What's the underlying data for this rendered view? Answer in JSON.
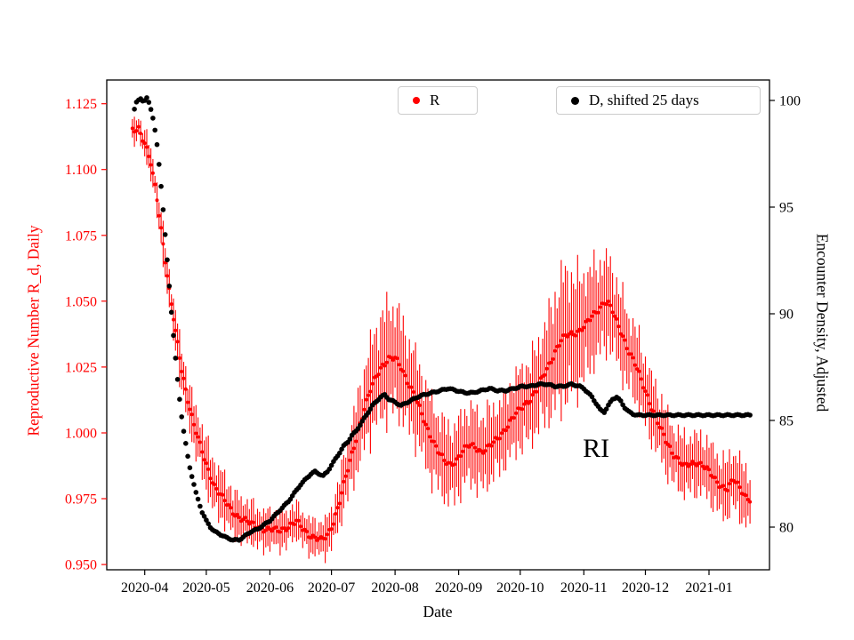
{
  "chart_data": {
    "type": "scatter",
    "title": "",
    "xlabel": "Date",
    "ylabel_left": "Reproductive Number R_d, Daily",
    "ylabel_right": "Encounter Density, Adjusted",
    "x_unit": "days since 2020-04-01",
    "xlim": [
      -18.5,
      304.5
    ],
    "ylim_left": [
      0.948,
      1.134
    ],
    "ylim_right": [
      78.0,
      100.96
    ],
    "grid": false,
    "x_ticks": [
      {
        "day": 0,
        "label": "2020-04"
      },
      {
        "day": 30,
        "label": "2020-05"
      },
      {
        "day": 61,
        "label": "2020-06"
      },
      {
        "day": 91,
        "label": "2020-07"
      },
      {
        "day": 122,
        "label": "2020-08"
      },
      {
        "day": 153,
        "label": "2020-09"
      },
      {
        "day": 183,
        "label": "2020-10"
      },
      {
        "day": 214,
        "label": "2020-11"
      },
      {
        "day": 244,
        "label": "2020-12"
      },
      {
        "day": 275,
        "label": "2021-01"
      }
    ],
    "y_ticks_left": [
      "0.950",
      "0.975",
      "1.000",
      "1.025",
      "1.050",
      "1.075",
      "1.100",
      "1.125"
    ],
    "y_ticks_right": [
      "80",
      "85",
      "90",
      "95",
      "100"
    ],
    "legend": [
      {
        "label": "R",
        "color": "#ff0000"
      },
      {
        "label": "D, shifted 25 days",
        "color": "#000000"
      }
    ],
    "annotation": {
      "text": "RI",
      "day": 220,
      "value_left": 0.994
    },
    "colors": {
      "r_series": "#ff0000",
      "d_series": "#000000",
      "axis": "#000000",
      "legend_edge": "#cccccc"
    },
    "series": [
      {
        "name": "R",
        "axis": "left",
        "color": "#ff0000",
        "marker": "dot",
        "has_error_bars": true,
        "keypoints_format": [
          "day",
          "value",
          "error"
        ],
        "keypoints": [
          [
            -6,
            1.115,
            0.004
          ],
          [
            -3,
            1.116,
            0.004
          ],
          [
            0,
            1.11,
            0.005
          ],
          [
            3,
            1.102,
            0.005
          ],
          [
            6,
            1.089,
            0.006
          ],
          [
            9,
            1.072,
            0.006
          ],
          [
            12,
            1.054,
            0.007
          ],
          [
            15,
            1.038,
            0.007
          ],
          [
            18,
            1.024,
            0.008
          ],
          [
            21,
            1.013,
            0.008
          ],
          [
            24,
            1.003,
            0.008
          ],
          [
            27,
            0.995,
            0.009
          ],
          [
            30,
            0.988,
            0.009
          ],
          [
            34,
            0.98,
            0.009
          ],
          [
            38,
            0.975,
            0.0085
          ],
          [
            42,
            0.971,
            0.008
          ],
          [
            46,
            0.968,
            0.0075
          ],
          [
            50,
            0.966,
            0.007
          ],
          [
            55,
            0.9645,
            0.007
          ],
          [
            60,
            0.963,
            0.0065
          ],
          [
            65,
            0.963,
            0.0065
          ],
          [
            70,
            0.9645,
            0.006
          ],
          [
            74,
            0.966,
            0.006
          ],
          [
            78,
            0.963,
            0.006
          ],
          [
            82,
            0.9605,
            0.006
          ],
          [
            86,
            0.959,
            0.006
          ],
          [
            89,
            0.961,
            0.0065
          ],
          [
            92,
            0.9665,
            0.0075
          ],
          [
            95,
            0.974,
            0.0085
          ],
          [
            98,
            0.983,
            0.01
          ],
          [
            101,
            0.992,
            0.011
          ],
          [
            104,
            1.001,
            0.013
          ],
          [
            107,
            1.009,
            0.014
          ],
          [
            110,
            1.016,
            0.016
          ],
          [
            113,
            1.022,
            0.017
          ],
          [
            116,
            1.026,
            0.018
          ],
          [
            119,
            1.028,
            0.019
          ],
          [
            122,
            1.028,
            0.018
          ],
          [
            125,
            1.025,
            0.017
          ],
          [
            128,
            1.02,
            0.016
          ],
          [
            131,
            1.015,
            0.015
          ],
          [
            134,
            1.009,
            0.015
          ],
          [
            137,
            1.003,
            0.014
          ],
          [
            140,
            0.998,
            0.014
          ],
          [
            143,
            0.993,
            0.013
          ],
          [
            146,
            0.989,
            0.013
          ],
          [
            149,
            0.988,
            0.013
          ],
          [
            152,
            0.99,
            0.013
          ],
          [
            155,
            0.993,
            0.013
          ],
          [
            158,
            0.995,
            0.013
          ],
          [
            161,
            0.995,
            0.013
          ],
          [
            164,
            0.993,
            0.013
          ],
          [
            167,
            0.994,
            0.013
          ],
          [
            170,
            0.996,
            0.012
          ],
          [
            173,
            0.999,
            0.012
          ],
          [
            176,
            1.002,
            0.012
          ],
          [
            179,
            1.005,
            0.013
          ],
          [
            182,
            1.008,
            0.013
          ],
          [
            185,
            1.011,
            0.014
          ],
          [
            188,
            1.013,
            0.014
          ],
          [
            191,
            1.016,
            0.015
          ],
          [
            194,
            1.021,
            0.016
          ],
          [
            197,
            1.026,
            0.018
          ],
          [
            200,
            1.031,
            0.02
          ],
          [
            203,
            1.035,
            0.022
          ],
          [
            206,
            1.037,
            0.022
          ],
          [
            209,
            1.038,
            0.021
          ],
          [
            212,
            1.039,
            0.019
          ],
          [
            215,
            1.041,
            0.018
          ],
          [
            218,
            1.044,
            0.017
          ],
          [
            221,
            1.047,
            0.016
          ],
          [
            224,
            1.05,
            0.016
          ],
          [
            226,
            1.049,
            0.015
          ],
          [
            228,
            1.046,
            0.015
          ],
          [
            230,
            1.042,
            0.014
          ],
          [
            233,
            1.037,
            0.014
          ],
          [
            236,
            1.031,
            0.013
          ],
          [
            239,
            1.026,
            0.013
          ],
          [
            242,
            1.02,
            0.012
          ],
          [
            245,
            1.014,
            0.012
          ],
          [
            248,
            1.008,
            0.011
          ],
          [
            251,
            1.002,
            0.011
          ],
          [
            254,
            0.997,
            0.011
          ],
          [
            257,
            0.993,
            0.01
          ],
          [
            260,
            0.99,
            0.01
          ],
          [
            263,
            0.987,
            0.01
          ],
          [
            266,
            0.988,
            0.01
          ],
          [
            269,
            0.989,
            0.01
          ],
          [
            272,
            0.988,
            0.01
          ],
          [
            275,
            0.985,
            0.01
          ],
          [
            278,
            0.982,
            0.01
          ],
          [
            281,
            0.98,
            0.01
          ],
          [
            284,
            0.979,
            0.01
          ],
          [
            287,
            0.982,
            0.01
          ],
          [
            290,
            0.979,
            0.01
          ],
          [
            293,
            0.976,
            0.01
          ],
          [
            295,
            0.975,
            0.01
          ]
        ]
      },
      {
        "name": "D, shifted 25 days",
        "axis": "right",
        "color": "#000000",
        "marker": "dot",
        "has_error_bars": false,
        "keypoints_format": [
          "day",
          "value"
        ],
        "keypoints": [
          [
            -5,
            99.6
          ],
          [
            -4,
            99.9
          ],
          [
            -3,
            100.0
          ],
          [
            -2,
            100.1
          ],
          [
            -1,
            100.0
          ],
          [
            0,
            100.0
          ],
          [
            1,
            100.1
          ],
          [
            2,
            99.9
          ],
          [
            3,
            99.6
          ],
          [
            4,
            99.2
          ],
          [
            5,
            98.6
          ],
          [
            6,
            97.9
          ],
          [
            7,
            97.0
          ],
          [
            8,
            96.0
          ],
          [
            9,
            94.9
          ],
          [
            10,
            93.7
          ],
          [
            11,
            92.5
          ],
          [
            12,
            91.3
          ],
          [
            13,
            90.1
          ],
          [
            14,
            89.0
          ],
          [
            15,
            87.9
          ],
          [
            16,
            86.9
          ],
          [
            17,
            86.0
          ],
          [
            18,
            85.2
          ],
          [
            19,
            84.5
          ],
          [
            20,
            83.9
          ],
          [
            21,
            83.3
          ],
          [
            22,
            82.8
          ],
          [
            23,
            82.4
          ],
          [
            24,
            82.0
          ],
          [
            25,
            81.6
          ],
          [
            26,
            81.3
          ],
          [
            27,
            81.0
          ],
          [
            28,
            80.7
          ],
          [
            30,
            80.3
          ],
          [
            32,
            80.0
          ],
          [
            34,
            79.8
          ],
          [
            36,
            79.7
          ],
          [
            38,
            79.6
          ],
          [
            40,
            79.5
          ],
          [
            43,
            79.4
          ],
          [
            46,
            79.4
          ],
          [
            49,
            79.6
          ],
          [
            52,
            79.8
          ],
          [
            55,
            79.9
          ],
          [
            58,
            80.1
          ],
          [
            61,
            80.3
          ],
          [
            64,
            80.6
          ],
          [
            67,
            80.9
          ],
          [
            70,
            81.2
          ],
          [
            73,
            81.6
          ],
          [
            76,
            82.0
          ],
          [
            79,
            82.3
          ],
          [
            81,
            82.5
          ],
          [
            83,
            82.6
          ],
          [
            85,
            82.5
          ],
          [
            87,
            82.4
          ],
          [
            89,
            82.6
          ],
          [
            91,
            82.9
          ],
          [
            93,
            83.2
          ],
          [
            95,
            83.5
          ],
          [
            97,
            83.8
          ],
          [
            99,
            84.0
          ],
          [
            101,
            84.3
          ],
          [
            103,
            84.5
          ],
          [
            105,
            84.8
          ],
          [
            107,
            85.1
          ],
          [
            109,
            85.4
          ],
          [
            111,
            85.7
          ],
          [
            113,
            85.9
          ],
          [
            115,
            86.1
          ],
          [
            117,
            86.2
          ],
          [
            119,
            86.0
          ],
          [
            121,
            85.9
          ],
          [
            123,
            85.8
          ],
          [
            125,
            85.7
          ],
          [
            127,
            85.8
          ],
          [
            129,
            85.9
          ],
          [
            131,
            86.0
          ],
          [
            133,
            86.1
          ],
          [
            136,
            86.2
          ],
          [
            140,
            86.3
          ],
          [
            144,
            86.4
          ],
          [
            148,
            86.5
          ],
          [
            152,
            86.4
          ],
          [
            156,
            86.3
          ],
          [
            160,
            86.3
          ],
          [
            164,
            86.4
          ],
          [
            168,
            86.5
          ],
          [
            172,
            86.4
          ],
          [
            176,
            86.4
          ],
          [
            180,
            86.5
          ],
          [
            184,
            86.6
          ],
          [
            188,
            86.6
          ],
          [
            192,
            86.7
          ],
          [
            196,
            86.7
          ],
          [
            200,
            86.6
          ],
          [
            204,
            86.6
          ],
          [
            208,
            86.7
          ],
          [
            212,
            86.6
          ],
          [
            214,
            86.5
          ],
          [
            216,
            86.3
          ],
          [
            218,
            86.1
          ],
          [
            220,
            85.8
          ],
          [
            222,
            85.5
          ],
          [
            224,
            85.4
          ],
          [
            226,
            85.7
          ],
          [
            228,
            86.0
          ],
          [
            230,
            86.1
          ],
          [
            232,
            85.9
          ],
          [
            234,
            85.6
          ],
          [
            236,
            85.4
          ],
          [
            238,
            85.3
          ],
          [
            240,
            85.25
          ],
          [
            295,
            85.25
          ]
        ]
      }
    ]
  }
}
